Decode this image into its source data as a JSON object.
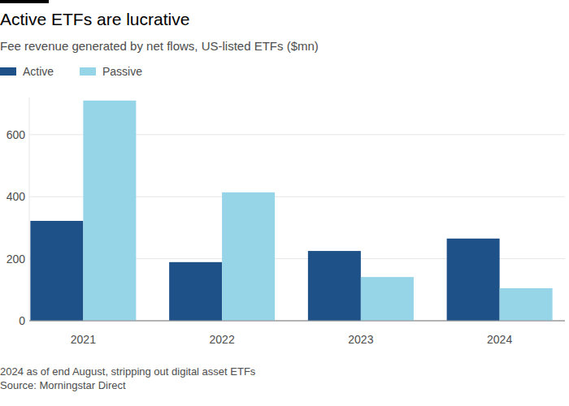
{
  "chart_data": {
    "type": "bar",
    "title": "Active ETFs are lucrative",
    "subtitle": "Fee revenue generated by net flows, US-listed ETFs ($mn)",
    "categories": [
      "2021",
      "2022",
      "2023",
      "2024"
    ],
    "series": [
      {
        "name": "Active",
        "color": "#1f5189",
        "values": [
          322,
          189,
          225,
          265
        ]
      },
      {
        "name": "Passive",
        "color": "#96d4e7",
        "values": [
          710,
          414,
          141,
          105
        ]
      }
    ],
    "ylim": [
      0,
      720
    ],
    "yticks": [
      0,
      200,
      400,
      600
    ],
    "grid": true,
    "legend": "top-left",
    "notes": [
      "2024 as of end August, stripping out digital asset ETFs",
      "Source: Morningstar Direct"
    ]
  }
}
